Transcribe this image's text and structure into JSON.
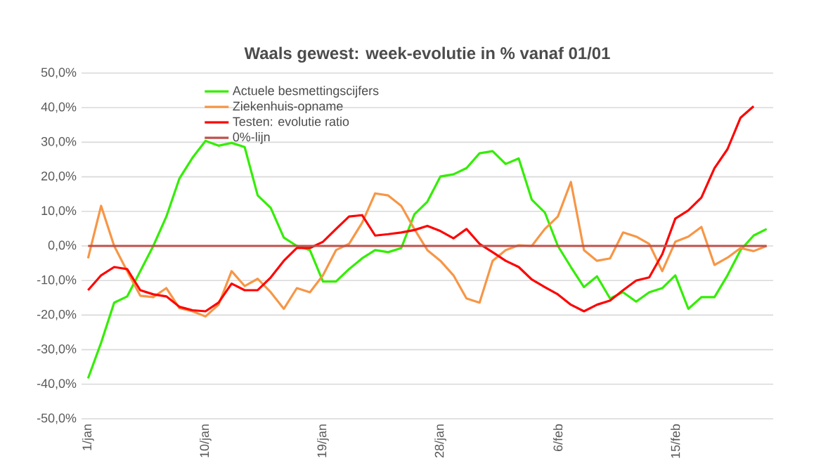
{
  "chart_data": {
    "type": "line",
    "title": "Waals gewest: week-evolutie in % vanaf 01/01",
    "categories": [
      "1/jan",
      null,
      null,
      null,
      null,
      null,
      null,
      null,
      null,
      "10/jan",
      null,
      null,
      null,
      null,
      null,
      null,
      null,
      null,
      "19/jan",
      null,
      null,
      null,
      null,
      null,
      null,
      null,
      null,
      "28/jan",
      null,
      null,
      null,
      null,
      null,
      null,
      null,
      null,
      "6/feb",
      null,
      null,
      null,
      null,
      null,
      null,
      null,
      null,
      "15/feb",
      null,
      null,
      null,
      null,
      null,
      null,
      null
    ],
    "series": [
      {
        "name": "Actuele besmettingscijfers",
        "color": "#33ee00",
        "values": [
          -38.3,
          -28,
          -16.4,
          -14.6,
          -7.3,
          0,
          8.5,
          19.5,
          25.5,
          30.4,
          29,
          29.8,
          28.6,
          14.6,
          11,
          2.4,
          0,
          -1.2,
          -10.3,
          -10.3,
          -6.7,
          -3.6,
          -1.2,
          -1.8,
          -0.6,
          9.1,
          12.8,
          20.1,
          20.7,
          22.5,
          26.8,
          27.4,
          23.7,
          25.3,
          13.4,
          9.7,
          0,
          -6.1,
          -11.9,
          -8.8,
          -15.2,
          -13.4,
          -16.1,
          -13.4,
          -12.2,
          -8.5,
          -18.2,
          -14.8,
          -14.8,
          -8.5,
          -1.2,
          3,
          4.9
        ]
      },
      {
        "name": "Ziekenhuis-opname",
        "color": "#f79646",
        "values": [
          -3.6,
          11.6,
          0,
          -7.3,
          -14.4,
          -14.8,
          -12.2,
          -18,
          -18.9,
          -20.4,
          -17,
          -7.3,
          -11.6,
          -9.5,
          -13.4,
          -18.2,
          -12.2,
          -13.4,
          -8.5,
          -1.2,
          0.6,
          6.7,
          15.2,
          14.6,
          11.6,
          4.9,
          -1.2,
          -4.3,
          -8.5,
          -15.2,
          -16.4,
          -4.3,
          -1.2,
          0.2,
          0,
          4.9,
          8.5,
          18.5,
          -1.2,
          -4.3,
          -3.6,
          3.9,
          2.7,
          0.6,
          -7.3,
          1.2,
          2.7,
          5.5,
          -5.5,
          -3.4,
          -0.6,
          -1.5,
          0
        ]
      },
      {
        "name": "Testen: evolutie ratio",
        "color": "#ff0000",
        "values": [
          -12.8,
          -8.5,
          -6.1,
          -6.7,
          -12.8,
          -14,
          -14.6,
          -17.6,
          -18.6,
          -18.9,
          -16.4,
          -10.9,
          -12.8,
          -12.8,
          -9.1,
          -4.3,
          -0.6,
          -0.6,
          1.2,
          4.9,
          8.5,
          8.9,
          3,
          3.4,
          3.9,
          4.6,
          5.8,
          4.3,
          2.2,
          4.9,
          0.6,
          -1.8,
          -4.3,
          -6.1,
          -9.7,
          -11.9,
          -14,
          -17,
          -18.9,
          -17,
          -15.8,
          -12.8,
          -10,
          -9.1,
          -2.4,
          7.9,
          10.3,
          14,
          22.5,
          28,
          37.1,
          40.4,
          null
        ]
      },
      {
        "name": "0%-lijn",
        "color": "#c0504d",
        "values": [
          0,
          0,
          0,
          0,
          0,
          0,
          0,
          0,
          0,
          0,
          0,
          0,
          0,
          0,
          0,
          0,
          0,
          0,
          0,
          0,
          0,
          0,
          0,
          0,
          0,
          0,
          0,
          0,
          0,
          0,
          0,
          0,
          0,
          0,
          0,
          0,
          0,
          0,
          0,
          0,
          0,
          0,
          0,
          0,
          0,
          0,
          0,
          0,
          0,
          0,
          0,
          0,
          0
        ]
      }
    ],
    "ylim": [
      -50,
      50
    ],
    "yticks": [
      {
        "value": -50,
        "label": "-50,0%"
      },
      {
        "value": -40,
        "label": "-40,0%"
      },
      {
        "value": -30,
        "label": "-30,0%"
      },
      {
        "value": -20,
        "label": "-20,0%"
      },
      {
        "value": -10,
        "label": "-10,0%"
      },
      {
        "value": 0,
        "label": "0,0%"
      },
      {
        "value": 10,
        "label": "10,0%"
      },
      {
        "value": 20,
        "label": "20,0%"
      },
      {
        "value": 30,
        "label": "30,0%"
      },
      {
        "value": 40,
        "label": "40,0%"
      },
      {
        "value": 50,
        "label": "50,0%"
      }
    ],
    "grid": "y",
    "legend": "top left",
    "marker": "none",
    "line_style": "solid"
  }
}
